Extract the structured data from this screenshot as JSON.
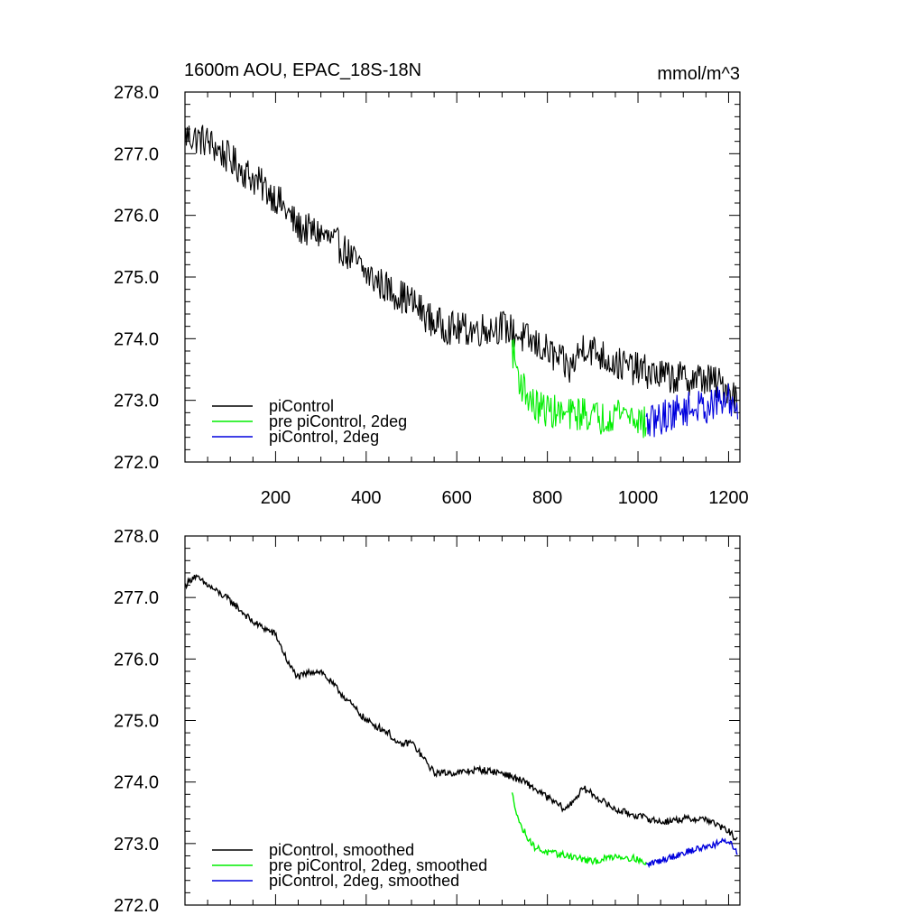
{
  "chart_data": [
    {
      "type": "line",
      "title": "1600m AOU, EPAC_18S-18N",
      "units": "mmol/m^3",
      "xlim": [
        0,
        1225
      ],
      "ylim": [
        272.0,
        278.0
      ],
      "xticks": [
        200,
        400,
        600,
        800,
        1000,
        1200
      ],
      "xtick_labels": [
        "200",
        "400",
        "600",
        "800",
        "1000",
        "1200"
      ],
      "yticks": [
        272,
        273,
        274,
        275,
        276,
        277,
        278
      ],
      "ytick_labels": [
        "272.0",
        "273.0",
        "274.0",
        "275.0",
        "276.0",
        "277.0",
        "278.0"
      ],
      "noise": 0.28,
      "series": [
        {
          "name": "piControl",
          "color": "#000000",
          "x_range": [
            1,
            1220
          ],
          "anchors": [
            [
              1,
              277.3
            ],
            [
              50,
              277.2
            ],
            [
              100,
              276.9
            ],
            [
              150,
              276.6
            ],
            [
              200,
              276.3
            ],
            [
              250,
              275.8
            ],
            [
              300,
              275.7
            ],
            [
              350,
              275.45
            ],
            [
              400,
              275.05
            ],
            [
              450,
              274.8
            ],
            [
              500,
              274.6
            ],
            [
              550,
              274.25
            ],
            [
              600,
              274.15
            ],
            [
              650,
              274.15
            ],
            [
              700,
              274.2
            ],
            [
              750,
              274.0
            ],
            [
              800,
              273.8
            ],
            [
              850,
              273.5
            ],
            [
              880,
              273.9
            ],
            [
              950,
              273.6
            ],
            [
              1000,
              273.5
            ],
            [
              1050,
              273.4
            ],
            [
              1100,
              273.35
            ],
            [
              1150,
              273.35
            ],
            [
              1200,
              273.2
            ],
            [
              1220,
              273.0
            ]
          ]
        },
        {
          "name": "pre piControl, 2deg",
          "color": "#00ee00",
          "x_range": [
            722,
            1018
          ],
          "anchors": [
            [
              722,
              273.85
            ],
            [
              740,
              273.3
            ],
            [
              770,
              272.9
            ],
            [
              800,
              272.85
            ],
            [
              840,
              272.75
            ],
            [
              880,
              272.8
            ],
            [
              920,
              272.7
            ],
            [
              960,
              272.85
            ],
            [
              1000,
              272.7
            ],
            [
              1018,
              272.6
            ]
          ]
        },
        {
          "name": "piControl, 2deg",
          "color": "#0000dd",
          "x_range": [
            1018,
            1220
          ],
          "anchors": [
            [
              1018,
              272.6
            ],
            [
              1060,
              272.75
            ],
            [
              1100,
              272.85
            ],
            [
              1150,
              272.9
            ],
            [
              1200,
              273.0
            ],
            [
              1220,
              272.9
            ]
          ]
        }
      ]
    },
    {
      "type": "line",
      "xlim": [
        0,
        1225
      ],
      "ylim": [
        272.0,
        278.0
      ],
      "xticks": [
        200,
        400,
        600,
        800,
        1000,
        1200
      ],
      "yticks": [
        272,
        273,
        274,
        275,
        276,
        277,
        278
      ],
      "ytick_labels": [
        "272.0",
        "273.0",
        "274.0",
        "275.0",
        "276.0",
        "277.0",
        "278.0"
      ],
      "noise": 0.07,
      "series": [
        {
          "name": "piControl, smoothed",
          "color": "#000000",
          "x_range": [
            1,
            1220
          ],
          "anchors": [
            [
              1,
              277.2
            ],
            [
              20,
              277.35
            ],
            [
              50,
              277.2
            ],
            [
              100,
              276.95
            ],
            [
              150,
              276.6
            ],
            [
              200,
              276.4
            ],
            [
              230,
              275.9
            ],
            [
              250,
              275.7
            ],
            [
              280,
              275.8
            ],
            [
              300,
              275.8
            ],
            [
              350,
              275.4
            ],
            [
              400,
              275.0
            ],
            [
              450,
              274.8
            ],
            [
              470,
              274.6
            ],
            [
              500,
              274.65
            ],
            [
              550,
              274.15
            ],
            [
              600,
              274.15
            ],
            [
              650,
              274.2
            ],
            [
              700,
              274.15
            ],
            [
              750,
              274.0
            ],
            [
              800,
              273.75
            ],
            [
              840,
              273.55
            ],
            [
              880,
              273.9
            ],
            [
              950,
              273.55
            ],
            [
              1000,
              273.45
            ],
            [
              1050,
              273.35
            ],
            [
              1100,
              273.4
            ],
            [
              1150,
              273.4
            ],
            [
              1200,
              273.2
            ],
            [
              1220,
              273.05
            ]
          ]
        },
        {
          "name": "pre piControl, 2deg, smoothed",
          "color": "#00ee00",
          "x_range": [
            722,
            1018
          ],
          "anchors": [
            [
              722,
              273.8
            ],
            [
              740,
              273.3
            ],
            [
              770,
              272.95
            ],
            [
              800,
              272.85
            ],
            [
              850,
              272.8
            ],
            [
              900,
              272.7
            ],
            [
              950,
              272.8
            ],
            [
              1000,
              272.75
            ],
            [
              1018,
              272.65
            ]
          ]
        },
        {
          "name": "piControl, 2deg, smoothed",
          "color": "#0000dd",
          "x_range": [
            1018,
            1220
          ],
          "anchors": [
            [
              1018,
              272.65
            ],
            [
              1060,
              272.75
            ],
            [
              1100,
              272.85
            ],
            [
              1150,
              272.95
            ],
            [
              1200,
              273.05
            ],
            [
              1220,
              272.85
            ]
          ]
        }
      ]
    }
  ]
}
